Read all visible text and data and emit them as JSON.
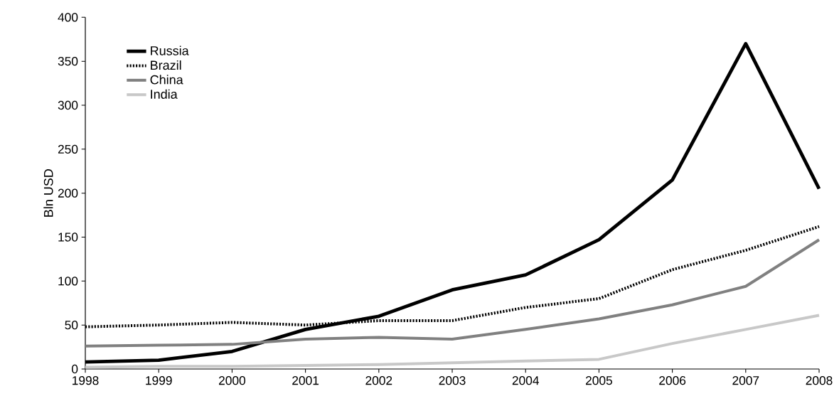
{
  "chart_data": {
    "type": "line",
    "ylabel": "Bln USD",
    "x": [
      1998,
      1999,
      2000,
      2001,
      2002,
      2003,
      2004,
      2005,
      2006,
      2007,
      2008
    ],
    "xlim": [
      1998,
      2008
    ],
    "ylim": [
      0,
      400
    ],
    "xticks": [
      1998,
      1999,
      2000,
      2001,
      2002,
      2003,
      2004,
      2005,
      2006,
      2007,
      2008
    ],
    "yticks": [
      0,
      50,
      100,
      150,
      200,
      250,
      300,
      350,
      400
    ],
    "grid": false,
    "legend": "top left",
    "marker": "none",
    "series": [
      {
        "name": "Russia",
        "color": "#000000",
        "line_style": "solid",
        "values": [
          8,
          10,
          20,
          45,
          60,
          90,
          107,
          147,
          215,
          370,
          205
        ]
      },
      {
        "name": "Brazil",
        "color": "#000000",
        "line_style": "dotted",
        "values": [
          48,
          50,
          53,
          50,
          55,
          55,
          70,
          80,
          113,
          135,
          162
        ]
      },
      {
        "name": "China",
        "color": "#808080",
        "line_style": "solid",
        "values": [
          26,
          27,
          28,
          34,
          36,
          34,
          45,
          57,
          73,
          94,
          147
        ]
      },
      {
        "name": "India",
        "color": "#c8c8c8",
        "line_style": "solid",
        "values": [
          2,
          3,
          3,
          4,
          5,
          7,
          9,
          11,
          29,
          45,
          61
        ]
      }
    ]
  }
}
